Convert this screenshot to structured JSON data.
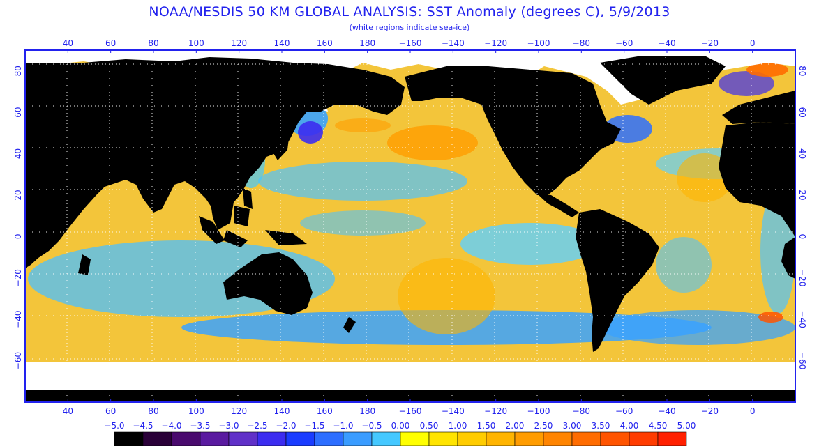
{
  "header": {
    "title": "NOAA/NESDIS 50 KM GLOBAL ANALYSIS: SST Anomaly (degrees C), 5/9/2013",
    "subtitle": "(white regions indicate sea-ice)"
  },
  "map": {
    "projection": "equirectangular",
    "lon_range": [
      20,
      380
    ],
    "lat_range": [
      -80,
      90
    ],
    "grid_spacing_deg": 20,
    "grid": "dotted white",
    "land_color": "#000000",
    "sea_ice_color": "#ffffff",
    "lon_tick_labels": [
      "40",
      "60",
      "80",
      "100",
      "120",
      "140",
      "160",
      "180",
      "−160",
      "−140",
      "−120",
      "−100",
      "−80",
      "−60",
      "−40",
      "−20",
      "0"
    ],
    "lat_tick_labels": [
      "80",
      "60",
      "40",
      "20",
      "0",
      "−20",
      "−40",
      "−60"
    ]
  },
  "colorbar": {
    "labels": [
      "−5.0",
      "−4.5",
      "−4.0",
      "−3.5",
      "−3.0",
      "−2.5",
      "−2.0",
      "−1.5",
      "−1.0",
      "−0.5",
      "0.00",
      "0.50",
      "1.00",
      "1.50",
      "2.00",
      "2.50",
      "3.00",
      "3.50",
      "4.00",
      "4.50",
      "5.00"
    ],
    "colors": [
      "#000000",
      "#2a0038",
      "#4a0a6e",
      "#5a1aa0",
      "#6030c8",
      "#3c2cf0",
      "#1a3cff",
      "#2d6eff",
      "#3a9cff",
      "#45c8ff",
      "#ffff00",
      "#ffe400",
      "#ffcc00",
      "#ffb400",
      "#ff9c00",
      "#ff8400",
      "#ff6c00",
      "#ff5400",
      "#ff3c00",
      "#ff2000"
    ]
  }
}
